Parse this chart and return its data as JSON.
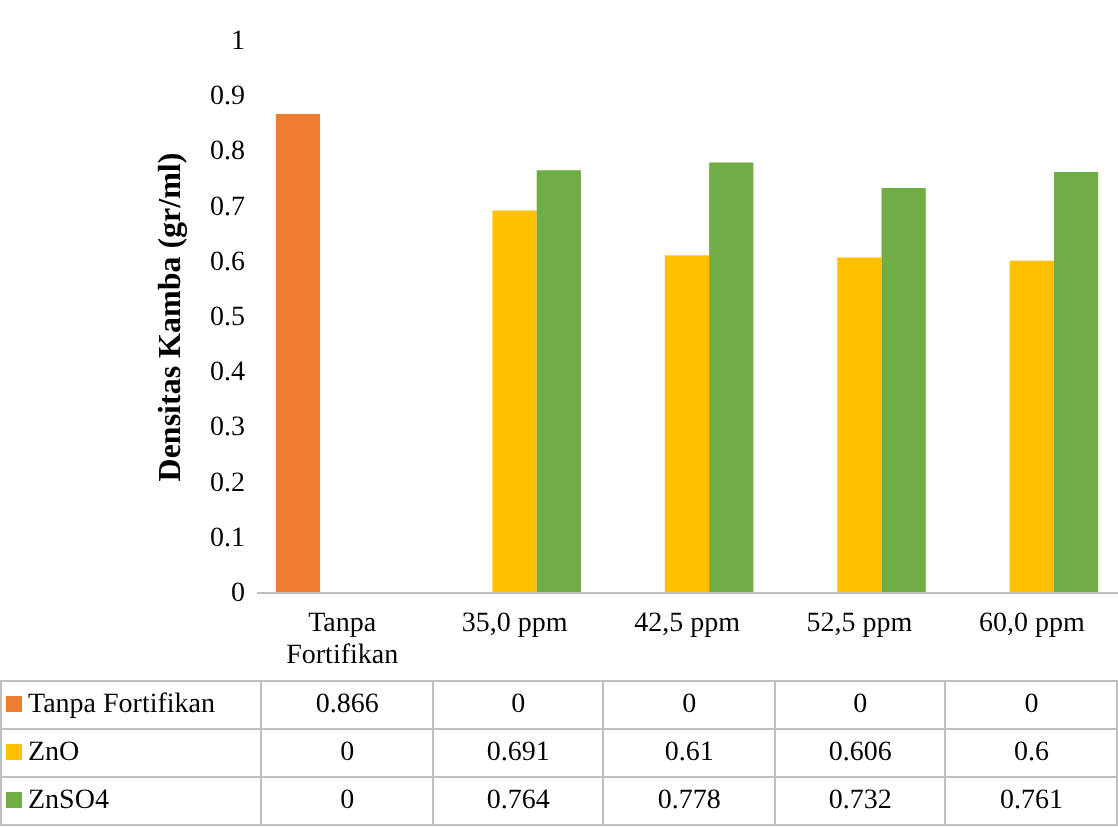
{
  "chart_data": {
    "type": "bar",
    "ylabel": "Densitas Kamba (gr/ml)",
    "categories": [
      "Tanpa\nFortifikan",
      "35,0 ppm",
      "42,5 ppm",
      "52,5 ppm",
      "60,0 ppm"
    ],
    "series": [
      {
        "name": "Tanpa Fortifikan",
        "color": "#ed7d31",
        "values": [
          0.866,
          0,
          0,
          0,
          0
        ]
      },
      {
        "name": "ZnO",
        "color": "#ffc000",
        "values": [
          0,
          0.691,
          0.61,
          0.606,
          0.6
        ]
      },
      {
        "name": "ZnSO4",
        "color": "#70ad47",
        "values": [
          0,
          0.764,
          0.778,
          0.732,
          0.761
        ]
      }
    ],
    "ylim": [
      0,
      1
    ],
    "yticks": [
      0,
      0.1,
      0.2,
      0.3,
      0.4,
      0.5,
      0.6,
      0.7,
      0.8,
      0.9,
      1
    ],
    "data_labels": true,
    "legend": "bottom"
  }
}
